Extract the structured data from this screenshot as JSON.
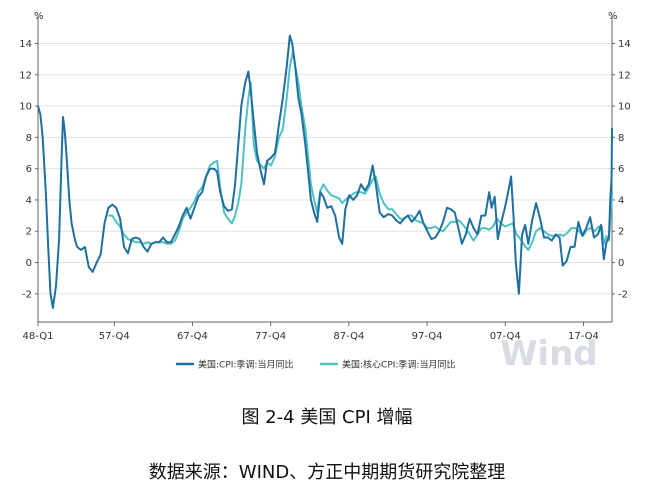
{
  "chart_data": {
    "type": "line",
    "y_unit_left": "%",
    "y_unit_right": "%",
    "ylim": [
      -3.8,
      15.5
    ],
    "y_ticks": [
      -2,
      0,
      2,
      4,
      6,
      8,
      10,
      12,
      14
    ],
    "x_ticks": [
      "48-Q1",
      "57-Q4",
      "67-Q4",
      "77-Q4",
      "87-Q4",
      "97-Q4",
      "07-Q4",
      "17-Q4"
    ],
    "x_tick_years": [
      1948,
      1957.75,
      1967.75,
      1977.75,
      1987.75,
      1997.75,
      2007.75,
      2017.75
    ],
    "xlim": [
      1948,
      2021.4
    ],
    "legend_position": "bottom",
    "watermark": "Wind",
    "series": [
      {
        "name": "美国:CPI:季调:当月同比",
        "color": "#1f6f9f",
        "points": [
          [
            1948.0,
            10.0
          ],
          [
            1948.3,
            9.5
          ],
          [
            1948.6,
            8.0
          ],
          [
            1949.0,
            4.5
          ],
          [
            1949.3,
            1.0
          ],
          [
            1949.6,
            -2.0
          ],
          [
            1949.9,
            -2.9
          ],
          [
            1950.3,
            -1.5
          ],
          [
            1950.7,
            1.5
          ],
          [
            1951.0,
            6.5
          ],
          [
            1951.2,
            9.3
          ],
          [
            1951.4,
            8.5
          ],
          [
            1951.7,
            6.5
          ],
          [
            1952.0,
            4.0
          ],
          [
            1952.3,
            2.5
          ],
          [
            1952.7,
            1.5
          ],
          [
            1953.0,
            1.0
          ],
          [
            1953.5,
            0.8
          ],
          [
            1954.0,
            1.0
          ],
          [
            1954.5,
            -0.3
          ],
          [
            1955.0,
            -0.6
          ],
          [
            1955.5,
            0.0
          ],
          [
            1956.0,
            0.5
          ],
          [
            1956.5,
            2.5
          ],
          [
            1957.0,
            3.5
          ],
          [
            1957.5,
            3.7
          ],
          [
            1958.0,
            3.5
          ],
          [
            1958.5,
            2.8
          ],
          [
            1959.0,
            1.0
          ],
          [
            1959.5,
            0.6
          ],
          [
            1960.0,
            1.5
          ],
          [
            1960.5,
            1.6
          ],
          [
            1961.0,
            1.5
          ],
          [
            1961.5,
            1.0
          ],
          [
            1962.0,
            0.7
          ],
          [
            1962.5,
            1.2
          ],
          [
            1963.0,
            1.3
          ],
          [
            1963.5,
            1.3
          ],
          [
            1964.0,
            1.6
          ],
          [
            1964.5,
            1.3
          ],
          [
            1965.0,
            1.3
          ],
          [
            1965.5,
            1.8
          ],
          [
            1966.0,
            2.3
          ],
          [
            1966.5,
            3.0
          ],
          [
            1967.0,
            3.5
          ],
          [
            1967.5,
            2.8
          ],
          [
            1968.0,
            3.5
          ],
          [
            1968.5,
            4.2
          ],
          [
            1969.0,
            4.5
          ],
          [
            1969.5,
            5.5
          ],
          [
            1970.0,
            6.0
          ],
          [
            1970.5,
            6.0
          ],
          [
            1970.9,
            5.8
          ],
          [
            1971.3,
            4.5
          ],
          [
            1971.8,
            3.6
          ],
          [
            1972.3,
            3.3
          ],
          [
            1972.8,
            3.4
          ],
          [
            1973.2,
            5.0
          ],
          [
            1973.6,
            7.5
          ],
          [
            1974.0,
            10.0
          ],
          [
            1974.5,
            11.5
          ],
          [
            1974.9,
            12.2
          ],
          [
            1975.2,
            11.0
          ],
          [
            1975.6,
            9.0
          ],
          [
            1976.0,
            7.0
          ],
          [
            1976.5,
            5.8
          ],
          [
            1976.9,
            5.0
          ],
          [
            1977.3,
            6.5
          ],
          [
            1977.8,
            6.7
          ],
          [
            1978.3,
            7.0
          ],
          [
            1978.8,
            8.8
          ],
          [
            1979.3,
            10.5
          ],
          [
            1979.8,
            12.5
          ],
          [
            1980.2,
            14.5
          ],
          [
            1980.5,
            14.0
          ],
          [
            1980.9,
            12.5
          ],
          [
            1981.3,
            10.5
          ],
          [
            1981.7,
            9.5
          ],
          [
            1982.2,
            7.5
          ],
          [
            1982.6,
            5.5
          ],
          [
            1982.9,
            4.0
          ],
          [
            1983.3,
            3.2
          ],
          [
            1983.7,
            2.6
          ],
          [
            1984.1,
            4.5
          ],
          [
            1984.5,
            4.2
          ],
          [
            1985.0,
            3.5
          ],
          [
            1985.5,
            3.6
          ],
          [
            1986.0,
            3.0
          ],
          [
            1986.5,
            1.6
          ],
          [
            1986.9,
            1.2
          ],
          [
            1987.3,
            3.4
          ],
          [
            1987.8,
            4.3
          ],
          [
            1988.3,
            4.0
          ],
          [
            1988.8,
            4.3
          ],
          [
            1989.3,
            5.0
          ],
          [
            1989.8,
            4.6
          ],
          [
            1990.3,
            5.0
          ],
          [
            1990.8,
            6.2
          ],
          [
            1991.2,
            5.0
          ],
          [
            1991.7,
            3.2
          ],
          [
            1992.2,
            2.9
          ],
          [
            1992.8,
            3.1
          ],
          [
            1993.3,
            3.0
          ],
          [
            1993.8,
            2.7
          ],
          [
            1994.3,
            2.5
          ],
          [
            1994.8,
            2.8
          ],
          [
            1995.3,
            3.0
          ],
          [
            1995.8,
            2.6
          ],
          [
            1996.3,
            2.9
          ],
          [
            1996.8,
            3.3
          ],
          [
            1997.3,
            2.5
          ],
          [
            1997.8,
            2.0
          ],
          [
            1998.3,
            1.5
          ],
          [
            1998.8,
            1.6
          ],
          [
            1999.3,
            2.0
          ],
          [
            1999.8,
            2.6
          ],
          [
            2000.3,
            3.5
          ],
          [
            2000.8,
            3.4
          ],
          [
            2001.3,
            3.2
          ],
          [
            2001.8,
            2.1
          ],
          [
            2002.2,
            1.2
          ],
          [
            2002.7,
            1.8
          ],
          [
            2003.2,
            2.8
          ],
          [
            2003.7,
            2.2
          ],
          [
            2004.2,
            1.8
          ],
          [
            2004.7,
            3.0
          ],
          [
            2005.2,
            3.0
          ],
          [
            2005.7,
            4.5
          ],
          [
            2006.0,
            3.5
          ],
          [
            2006.4,
            4.2
          ],
          [
            2006.8,
            1.5
          ],
          [
            2007.2,
            2.5
          ],
          [
            2007.7,
            3.5
          ],
          [
            2008.0,
            4.2
          ],
          [
            2008.5,
            5.5
          ],
          [
            2008.8,
            3.0
          ],
          [
            2009.1,
            0.0
          ],
          [
            2009.5,
            -2.0
          ],
          [
            2009.9,
            1.8
          ],
          [
            2010.3,
            2.4
          ],
          [
            2010.7,
            1.2
          ],
          [
            2011.2,
            2.7
          ],
          [
            2011.7,
            3.8
          ],
          [
            2012.2,
            2.8
          ],
          [
            2012.7,
            1.6
          ],
          [
            2013.2,
            1.6
          ],
          [
            2013.7,
            1.4
          ],
          [
            2014.2,
            1.8
          ],
          [
            2014.7,
            1.6
          ],
          [
            2015.1,
            -0.2
          ],
          [
            2015.6,
            0.1
          ],
          [
            2016.1,
            1.0
          ],
          [
            2016.6,
            1.0
          ],
          [
            2017.1,
            2.6
          ],
          [
            2017.6,
            1.7
          ],
          [
            2018.1,
            2.2
          ],
          [
            2018.6,
            2.9
          ],
          [
            2019.1,
            1.6
          ],
          [
            2019.6,
            1.8
          ],
          [
            2020.0,
            2.4
          ],
          [
            2020.35,
            0.2
          ],
          [
            2020.7,
            1.3
          ],
          [
            2021.0,
            1.6
          ],
          [
            2021.2,
            4.2
          ],
          [
            2021.35,
            5.4
          ],
          [
            2021.4,
            8.6
          ]
        ]
      },
      {
        "name": "美国:核心CPI:季调:当月同比",
        "color": "#4fc0c4",
        "points": [
          [
            1957.0,
            3.0
          ],
          [
            1957.5,
            3.0
          ],
          [
            1958.0,
            2.6
          ],
          [
            1958.5,
            2.3
          ],
          [
            1959.0,
            1.8
          ],
          [
            1959.5,
            1.5
          ],
          [
            1960.0,
            1.4
          ],
          [
            1960.5,
            1.3
          ],
          [
            1961.0,
            1.3
          ],
          [
            1961.5,
            1.2
          ],
          [
            1962.0,
            1.3
          ],
          [
            1962.5,
            1.2
          ],
          [
            1963.0,
            1.3
          ],
          [
            1963.5,
            1.3
          ],
          [
            1964.0,
            1.3
          ],
          [
            1964.5,
            1.2
          ],
          [
            1965.0,
            1.2
          ],
          [
            1965.5,
            1.4
          ],
          [
            1966.0,
            2.0
          ],
          [
            1966.5,
            2.8
          ],
          [
            1967.0,
            3.2
          ],
          [
            1967.5,
            3.5
          ],
          [
            1968.0,
            3.9
          ],
          [
            1968.5,
            4.5
          ],
          [
            1969.0,
            4.8
          ],
          [
            1969.5,
            5.5
          ],
          [
            1970.0,
            6.2
          ],
          [
            1970.5,
            6.4
          ],
          [
            1970.9,
            6.5
          ],
          [
            1971.3,
            4.8
          ],
          [
            1971.8,
            3.2
          ],
          [
            1972.3,
            2.8
          ],
          [
            1972.8,
            2.5
          ],
          [
            1973.2,
            3.0
          ],
          [
            1973.6,
            3.8
          ],
          [
            1974.0,
            5.0
          ],
          [
            1974.5,
            8.5
          ],
          [
            1974.9,
            10.5
          ],
          [
            1975.2,
            11.5
          ],
          [
            1975.6,
            7.5
          ],
          [
            1976.0,
            6.5
          ],
          [
            1976.5,
            6.2
          ],
          [
            1976.9,
            6.0
          ],
          [
            1977.3,
            6.4
          ],
          [
            1977.8,
            6.2
          ],
          [
            1978.3,
            6.8
          ],
          [
            1978.8,
            8.0
          ],
          [
            1979.3,
            8.5
          ],
          [
            1979.8,
            10.5
          ],
          [
            1980.2,
            12.5
          ],
          [
            1980.6,
            13.5
          ],
          [
            1980.9,
            12.5
          ],
          [
            1981.3,
            11.5
          ],
          [
            1981.7,
            10.0
          ],
          [
            1982.2,
            8.5
          ],
          [
            1982.6,
            6.5
          ],
          [
            1982.9,
            5.0
          ],
          [
            1983.3,
            4.0
          ],
          [
            1983.7,
            3.2
          ],
          [
            1984.1,
            4.6
          ],
          [
            1984.5,
            5.0
          ],
          [
            1985.0,
            4.6
          ],
          [
            1985.5,
            4.3
          ],
          [
            1986.0,
            4.2
          ],
          [
            1986.5,
            4.1
          ],
          [
            1986.9,
            3.8
          ],
          [
            1987.3,
            4.0
          ],
          [
            1987.8,
            4.2
          ],
          [
            1988.3,
            4.4
          ],
          [
            1988.8,
            4.5
          ],
          [
            1989.3,
            4.5
          ],
          [
            1989.8,
            4.4
          ],
          [
            1990.3,
            4.8
          ],
          [
            1990.8,
            5.3
          ],
          [
            1991.2,
            5.5
          ],
          [
            1991.7,
            4.4
          ],
          [
            1992.2,
            3.8
          ],
          [
            1992.8,
            3.4
          ],
          [
            1993.3,
            3.4
          ],
          [
            1993.8,
            3.1
          ],
          [
            1994.3,
            2.8
          ],
          [
            1994.8,
            2.8
          ],
          [
            1995.3,
            3.0
          ],
          [
            1995.8,
            3.0
          ],
          [
            1996.3,
            2.7
          ],
          [
            1996.8,
            2.6
          ],
          [
            1997.3,
            2.5
          ],
          [
            1997.8,
            2.2
          ],
          [
            1998.3,
            2.2
          ],
          [
            1998.8,
            2.3
          ],
          [
            1999.3,
            2.1
          ],
          [
            1999.8,
            2.0
          ],
          [
            2000.3,
            2.3
          ],
          [
            2000.8,
            2.6
          ],
          [
            2001.3,
            2.6
          ],
          [
            2001.8,
            2.7
          ],
          [
            2002.2,
            2.5
          ],
          [
            2002.7,
            2.2
          ],
          [
            2003.2,
            1.8
          ],
          [
            2003.7,
            1.4
          ],
          [
            2004.2,
            1.8
          ],
          [
            2004.7,
            2.2
          ],
          [
            2005.2,
            2.2
          ],
          [
            2005.7,
            2.1
          ],
          [
            2006.2,
            2.3
          ],
          [
            2006.7,
            2.8
          ],
          [
            2007.2,
            2.5
          ],
          [
            2007.7,
            2.3
          ],
          [
            2008.2,
            2.4
          ],
          [
            2008.7,
            2.5
          ],
          [
            2009.2,
            1.8
          ],
          [
            2009.7,
            1.5
          ],
          [
            2010.2,
            1.1
          ],
          [
            2010.7,
            0.8
          ],
          [
            2011.2,
            1.3
          ],
          [
            2011.7,
            2.0
          ],
          [
            2012.2,
            2.2
          ],
          [
            2012.7,
            2.0
          ],
          [
            2013.2,
            1.8
          ],
          [
            2013.7,
            1.7
          ],
          [
            2014.2,
            1.7
          ],
          [
            2014.7,
            1.8
          ],
          [
            2015.2,
            1.7
          ],
          [
            2015.7,
            1.9
          ],
          [
            2016.2,
            2.2
          ],
          [
            2016.7,
            2.2
          ],
          [
            2017.2,
            2.0
          ],
          [
            2017.7,
            1.7
          ],
          [
            2018.2,
            2.1
          ],
          [
            2018.7,
            2.2
          ],
          [
            2019.2,
            2.0
          ],
          [
            2019.7,
            2.3
          ],
          [
            2020.1,
            2.3
          ],
          [
            2020.35,
            1.2
          ],
          [
            2020.7,
            1.7
          ],
          [
            2021.0,
            1.4
          ],
          [
            2021.2,
            3.0
          ],
          [
            2021.35,
            3.8
          ],
          [
            2021.4,
            4.5
          ]
        ]
      }
    ]
  },
  "figure_title": "图 2-4 美国 CPI 增幅",
  "figure_source": "数据来源：WIND、方正中期期货研究院整理"
}
